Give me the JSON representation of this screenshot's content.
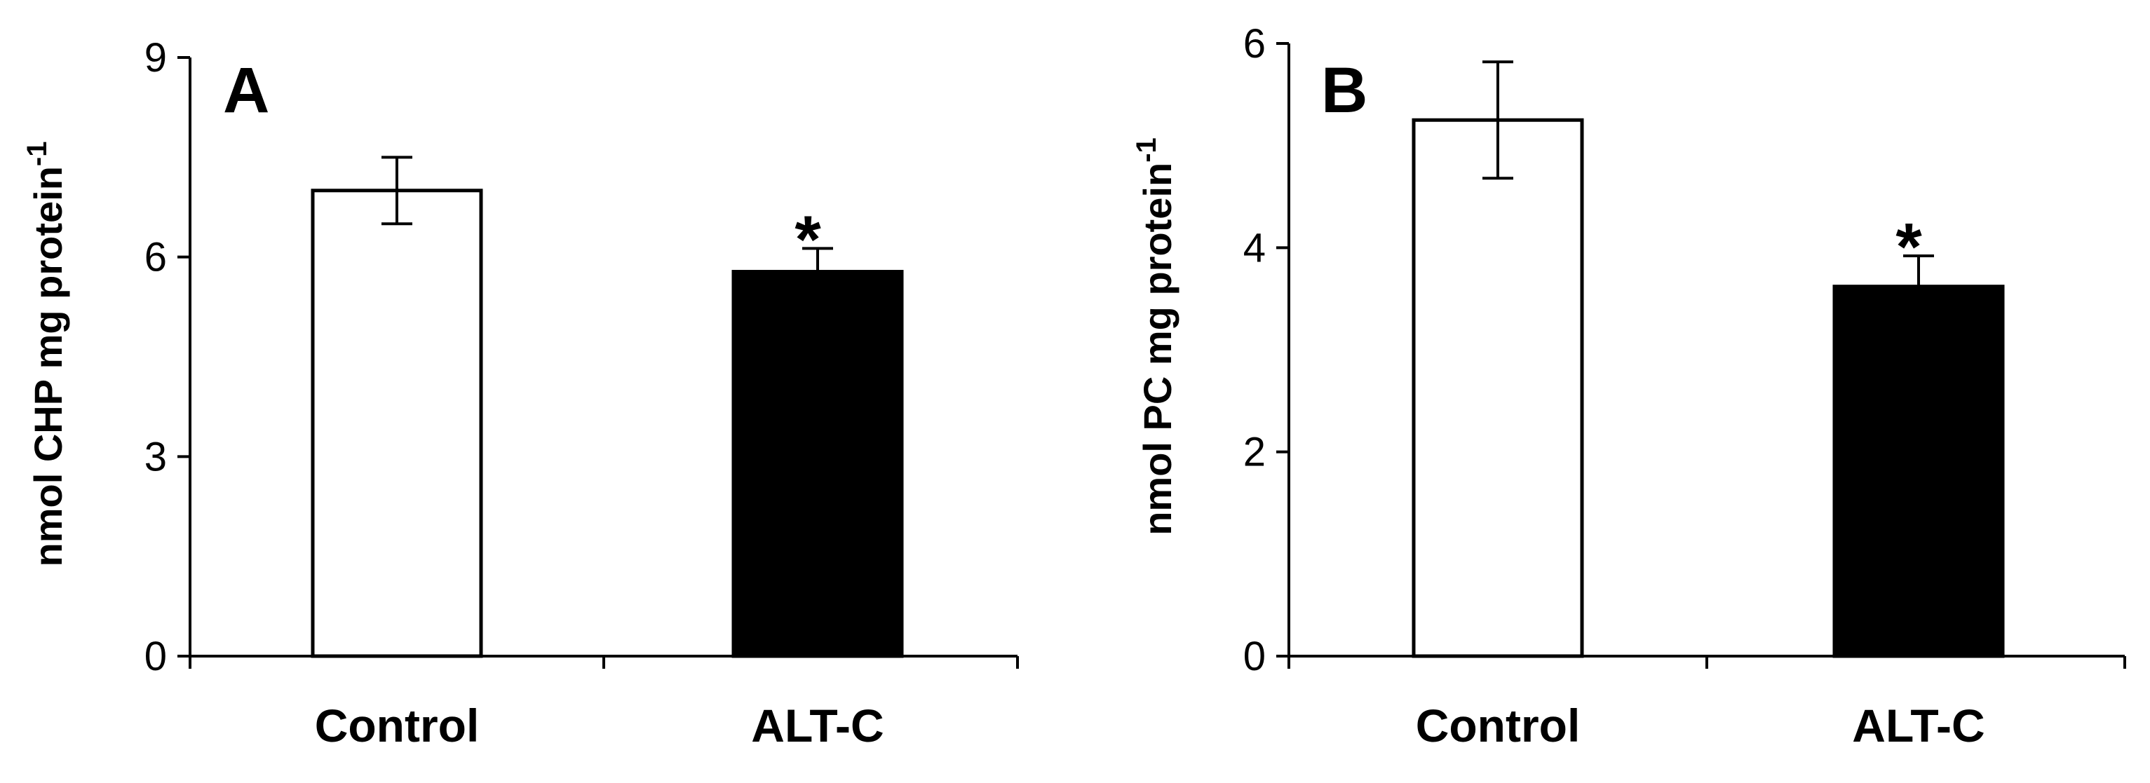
{
  "chart_data": [
    {
      "type": "bar",
      "panel_label": "A",
      "categories": [
        "Control",
        "ALT-C"
      ],
      "values": [
        7.0,
        5.78
      ],
      "errors": [
        0.5,
        0.35
      ],
      "bar_colors": [
        "#ffffff",
        "#000000"
      ],
      "significance": [
        "",
        "*"
      ],
      "ylabel_main": "nmol CHP  mg protein",
      "ylabel_sup": "-1",
      "ylim": [
        0,
        9
      ],
      "yticks": [
        "0",
        "3",
        "6",
        "9"
      ],
      "ytick_values": [
        0,
        3,
        6,
        9
      ],
      "grid": false,
      "legend": "none"
    },
    {
      "type": "bar",
      "panel_label": "B",
      "categories": [
        "Control",
        "ALT-C"
      ],
      "values": [
        5.25,
        3.62
      ],
      "errors": [
        0.57,
        0.3
      ],
      "bar_colors": [
        "#ffffff",
        "#000000"
      ],
      "significance": [
        "",
        "*"
      ],
      "ylabel_main": "nmol PC  mg protein",
      "ylabel_sup": "-1",
      "ylim": [
        0,
        6
      ],
      "yticks": [
        "0",
        "2",
        "4",
        "6"
      ],
      "ytick_values": [
        0,
        2,
        4,
        6
      ],
      "grid": false,
      "legend": "none"
    }
  ]
}
